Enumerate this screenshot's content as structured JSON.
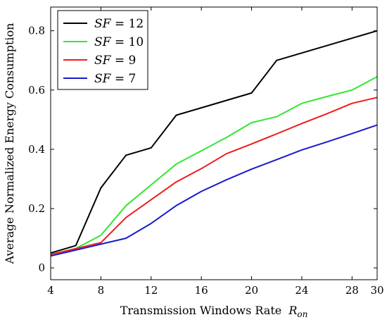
{
  "chart_data": {
    "type": "line",
    "xlabel": "Transmission Windows Rate",
    "xlabel_symbol": "R",
    "xlabel_subscript": "on",
    "ylabel": "Average Normalized Energy Consumption",
    "xlim": [
      4,
      30
    ],
    "ylim": [
      -0.04,
      0.88
    ],
    "xticks": [
      4,
      8,
      12,
      16,
      20,
      24,
      28,
      30
    ],
    "yticks": [
      0,
      0.2,
      0.4,
      0.6,
      0.8
    ],
    "ytick_labels": [
      "0",
      "0.2",
      "0.4",
      "0.6",
      "0.8"
    ],
    "grid": false,
    "legend_position": "top-left",
    "series": [
      {
        "name": "SF = 12",
        "name_var": "SF",
        "name_rest": " = 12",
        "color": "#000000",
        "x": [
          4,
          6,
          8,
          10,
          12,
          14,
          16,
          18,
          20,
          22,
          24,
          26,
          28,
          30
        ],
        "y": [
          0.05,
          0.075,
          0.27,
          0.38,
          0.405,
          0.515,
          0.54,
          0.565,
          0.59,
          0.7,
          0.725,
          0.75,
          0.775,
          0.8
        ]
      },
      {
        "name": "SF = 10",
        "name_var": "SF",
        "name_rest": " = 10",
        "color": "#33e633",
        "x": [
          4,
          6,
          8,
          10,
          12,
          14,
          16,
          18,
          20,
          22,
          24,
          26,
          28,
          30
        ],
        "y": [
          0.045,
          0.065,
          0.11,
          0.21,
          0.28,
          0.35,
          0.395,
          0.44,
          0.49,
          0.51,
          0.555,
          0.578,
          0.6,
          0.645
        ]
      },
      {
        "name": "SF = 9",
        "name_var": "SF",
        "name_rest": " = 9",
        "color": "#ee1c1c",
        "x": [
          4,
          6,
          8,
          10,
          12,
          14,
          16,
          18,
          20,
          22,
          24,
          26,
          28,
          30
        ],
        "y": [
          0.045,
          0.065,
          0.085,
          0.17,
          0.23,
          0.29,
          0.335,
          0.385,
          0.418,
          0.452,
          0.487,
          0.52,
          0.555,
          0.575
        ]
      },
      {
        "name": "SF = 7",
        "name_var": "SF",
        "name_rest": " = 7",
        "color": "#1a1acc",
        "x": [
          4,
          6,
          8,
          10,
          12,
          14,
          16,
          18,
          20,
          22,
          24,
          26,
          28,
          30
        ],
        "y": [
          0.04,
          0.06,
          0.08,
          0.1,
          0.15,
          0.21,
          0.258,
          0.297,
          0.333,
          0.365,
          0.398,
          0.425,
          0.453,
          0.482
        ]
      }
    ]
  }
}
